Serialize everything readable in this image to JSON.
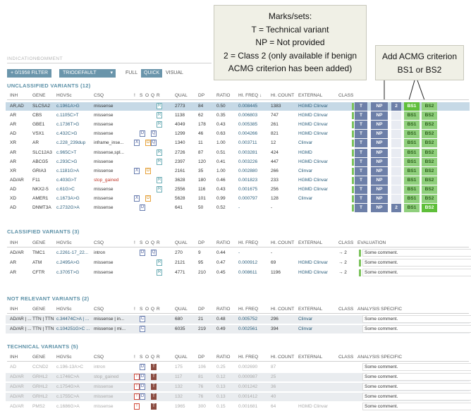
{
  "callouts": {
    "marks": {
      "title": "Marks/sets:",
      "lines": [
        "T = Technical variant",
        "NP = Not provided",
        "2 = Class 2 (only available  if benign",
        "ACMG criterion has been added)"
      ]
    },
    "acmg": {
      "lines": [
        "Add ACMG criterion",
        "BS1 or BS2"
      ]
    }
  },
  "tabs": {
    "indications": "INDICATIONS",
    "comment": "COMMENT"
  },
  "toolbar": {
    "filter": "0/1958 FILTER",
    "gene_panel": "TRIODEFAULT",
    "view_full": "FULL",
    "view_quick": "QUICK",
    "view_visual": "VISUAL"
  },
  "sections": {
    "unclassified": "UNCLASSIFIED VARIANTS (12)",
    "classified": "CLASSIFIED VARIANTS (3)",
    "not_relevant": "NOT RELEVANT VARIANTS (2)",
    "technical": "TECHNICAL VARIANTS (5)"
  },
  "headers": {
    "inh": "INH",
    "gene": "GENE",
    "hgvsc": "HGVSc",
    "csq": "CSQ",
    "bang": "!",
    "s": "S",
    "o": "O",
    "q": "Q",
    "r": "R",
    "qual": "QUAL",
    "dp": "DP",
    "ratio": "RATIO",
    "hifreq": "HI. FREQ",
    "hifreq_sorted": "HI. FREQ ↓",
    "hicount": "HI. COUNT",
    "external": "EXTERNAL",
    "class": "CLASS",
    "evaluation": "EVALUATION",
    "analysis_specific": "ANALYSIS SPECIFIC"
  },
  "class_marks": {
    "t": "T",
    "np": "NP",
    "two": "2",
    "bs1": "BS1",
    "bs2": "BS2"
  },
  "unclassified_rows": [
    {
      "inh": "AR,AD",
      "gene": "SLCSA2",
      "hgvsc": "c.1961A>G",
      "csq": "missense",
      "flags": [
        "R"
      ],
      "qual": "2773",
      "dp": "84",
      "ratio": "0.50",
      "hifreq": "0.008445",
      "hicount": "1383",
      "external": "HGMD Clinvar"
    },
    {
      "inh": "AR",
      "gene": "CBS",
      "hgvsc": "c.1105C>T",
      "csq": "missense",
      "flags": [
        "R"
      ],
      "qual": "1138",
      "dp": "62",
      "ratio": "0.35",
      "hifreq": "0.006803",
      "hicount": "747",
      "external": "HGMD Clinvar"
    },
    {
      "inh": "AR",
      "gene": "GBE1",
      "hgvsc": "c.1736T>G",
      "csq": "missense",
      "flags": [
        "R"
      ],
      "qual": "4049",
      "dp": "178",
      "ratio": "0.43",
      "hifreq": "0.005385",
      "hicount": "261",
      "external": "HGMD Clinvar"
    },
    {
      "inh": "AD",
      "gene": "VSX1",
      "hgvsc": "c.432C>G",
      "csq": "missense",
      "flags": [
        "Q",
        "D"
      ],
      "qual": "1299",
      "dp": "46",
      "ratio": "0.63",
      "hifreq": "0.004266",
      "hicount": "821",
      "external": "HGMD Clinvar"
    },
    {
      "inh": "XR",
      "gene": "AR",
      "hgvsc": "c.228_239dup",
      "csq": "inframe_inse...",
      "flags": [
        "X",
        "O",
        "Q"
      ],
      "qual": "1340",
      "dp": "11",
      "ratio": "1.00",
      "hifreq": "0.003711",
      "hicount": "12",
      "external": "Clinvar"
    },
    {
      "inh": "AR",
      "gene": "SLC12A3",
      "hgvsc": "c.965C>T",
      "csq": "missense,spl...",
      "flags": [
        "R"
      ],
      "qual": "2726",
      "dp": "87",
      "ratio": "0.51",
      "hifreq": "0.003281",
      "hicount": "424",
      "external": "HGMD"
    },
    {
      "inh": "AR",
      "gene": "ABCG5",
      "hgvsc": "c.293C>G",
      "csq": "missense",
      "flags": [
        "R"
      ],
      "qual": "2397",
      "dp": "120",
      "ratio": "0.41",
      "hifreq": "0.003226",
      "hicount": "447",
      "external": "HGMD Clinvar"
    },
    {
      "inh": "XR",
      "gene": "GRIA3",
      "hgvsc": "c.1181G>A",
      "csq": "missense",
      "flags": [
        "X",
        "O"
      ],
      "qual": "2161",
      "dp": "35",
      "ratio": "1.00",
      "hifreq": "0.002880",
      "hicount": "266",
      "external": "Clinvar"
    },
    {
      "inh": "AD/AR",
      "gene": "F11",
      "hgvsc": "c.403G>T",
      "csq": "stop_gained",
      "flags": [
        "R"
      ],
      "qual": "3628",
      "dp": "180",
      "ratio": "0.46",
      "hifreq": "0.001823",
      "hicount": "233",
      "external": "HGMD Clinvar"
    },
    {
      "inh": "AD",
      "gene": "NKX2-5",
      "hgvsc": "c.61G>C",
      "csq": "missense",
      "flags": [
        "R"
      ],
      "qual": "2556",
      "dp": "116",
      "ratio": "0.43",
      "hifreq": "0.001675",
      "hicount": "256",
      "external": "HGMD Clinvar"
    },
    {
      "inh": "XD",
      "gene": "AMER1",
      "hgvsc": "c.1673A>G",
      "csq": "missense",
      "flags": [
        "X",
        "O"
      ],
      "qual": "5628",
      "dp": "101",
      "ratio": "0.99",
      "hifreq": "0.000797",
      "hicount": "128",
      "external": "Clinvar"
    },
    {
      "inh": "AD",
      "gene": "DNMT3A",
      "hgvsc": "c.2732G>A",
      "csq": "missense",
      "flags": [
        "D"
      ],
      "qual": "641",
      "dp": "50",
      "ratio": "0.52",
      "hifreq": "-",
      "hicount": "-",
      "external": ""
    }
  ],
  "classified_rows": [
    {
      "inh": "AD/AR",
      "gene": "TMC1",
      "hgvsc": "c.2261-17_22...",
      "csq": "intron",
      "flags": [
        "D",
        "Q"
      ],
      "qual": "270",
      "dp": "9",
      "ratio": "0.44",
      "hifreq": "-",
      "hicount": "-",
      "external": "",
      "class": "→ 2",
      "evaluation": "Some comment."
    },
    {
      "inh": "AR",
      "gene": "ATM",
      "hgvsc": "c.2495A>G",
      "csq": "missense",
      "flags": [
        "R"
      ],
      "qual": "2121",
      "dp": "95",
      "ratio": "0.47",
      "hifreq": "0.000912",
      "hicount": "69",
      "external": "HGMD Clinvar",
      "class": "→ 2",
      "evaluation": "Some comment."
    },
    {
      "inh": "AR",
      "gene": "CFTR",
      "hgvsc": "c.3705T>G",
      "csq": "missense",
      "flags": [
        "R"
      ],
      "qual": "4771",
      "dp": "210",
      "ratio": "0.45",
      "hifreq": "0.008611",
      "hicount": "1196",
      "external": "HGMD Clinvar",
      "class": "→ 2",
      "evaluation": "Some comment."
    }
  ],
  "not_relevant_rows": [
    {
      "inh": "AD/AR | ...",
      "gene": "TTN | TTN",
      "hgvsc": "c.34474C>A | ...",
      "csq": "missense | in...",
      "flags": [
        "C"
      ],
      "qual": "680",
      "dp": "21",
      "ratio": "0.48",
      "hifreq": "0.005752",
      "hicount": "296",
      "external": "Clinvar",
      "evaluation": "Some comment."
    },
    {
      "inh": "AD/AR | ...",
      "gene": "TTN | TTN",
      "hgvsc": "c.104251G>C ...",
      "csq": "missense | mi...",
      "flags": [
        "C"
      ],
      "qual": "6035",
      "dp": "219",
      "ratio": "0.49",
      "hifreq": "0.002561",
      "hicount": "394",
      "external": "Clinvar",
      "evaluation": "Some comment."
    }
  ],
  "technical_rows": [
    {
      "inh": "AD",
      "gene": "CCND2",
      "hgvsc": "c.196-13A>C",
      "csq": "intron",
      "flags": [
        "D",
        "T"
      ],
      "qual": "175",
      "dp": "106",
      "ratio": "0.25",
      "hifreq": "0.002690",
      "hicount": "87",
      "external": "",
      "evaluation": "Some comment."
    },
    {
      "inh": "AD/AR",
      "gene": "GRHL2",
      "hgvsc": "c.1746C>A",
      "csq": "stop_gained",
      "flags": [
        "!",
        "D",
        "T"
      ],
      "qual": "117",
      "dp": "81",
      "ratio": "0.12",
      "hifreq": "0.000987",
      "hicount": "25",
      "external": "",
      "evaluation": "Some comment."
    },
    {
      "inh": "AD/AR",
      "gene": "GRHL2",
      "hgvsc": "c.1754G>A",
      "csq": "missense",
      "flags": [
        "!",
        "D",
        "T"
      ],
      "qual": "132",
      "dp": "76",
      "ratio": "0.13",
      "hifreq": "0.001242",
      "hicount": "36",
      "external": "",
      "evaluation": "Some comment."
    },
    {
      "inh": "AD/AR",
      "gene": "GRHL2",
      "hgvsc": "c.1755C>A",
      "csq": "missense",
      "flags": [
        "!",
        "D",
        "T"
      ],
      "qual": "132",
      "dp": "76",
      "ratio": "0.13",
      "hifreq": "0.001412",
      "hicount": "40",
      "external": "",
      "evaluation": "Some comment."
    },
    {
      "inh": "AD/AR",
      "gene": "PMS2",
      "hgvsc": "c.1686G>A",
      "csq": "missense",
      "flags": [
        "!",
        "T"
      ],
      "qual": "1965",
      "dp": "300",
      "ratio": "0.15",
      "hifreq": "0.001681",
      "hicount": "64",
      "external": "HGMD Clinvar",
      "evaluation": "Some comment."
    }
  ],
  "colors": {
    "accent": "#5a8fa6",
    "selected_row": "#c6d9e6",
    "class_mark": "#6d7fa8",
    "bs_green": "#8fcf7c",
    "bs_active": "#5fbf3a",
    "stop_gained": "#c0392b"
  }
}
